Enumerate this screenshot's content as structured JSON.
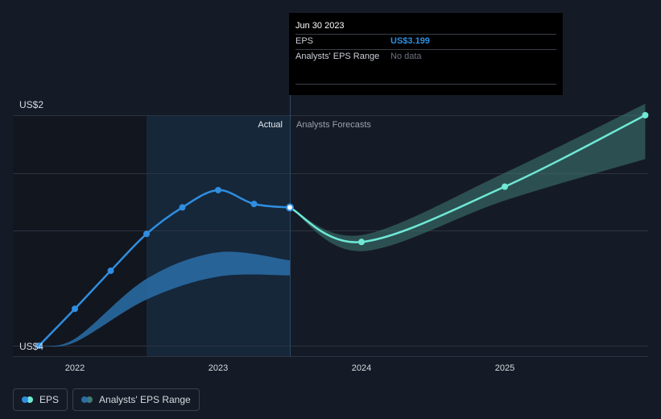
{
  "chart_data": {
    "type": "line",
    "title": "",
    "xlabel": "",
    "ylabel": "",
    "x_ticks": [
      "2022",
      "2023",
      "2024",
      "2025"
    ],
    "y_ticks": [
      "US$2",
      "US$4"
    ],
    "ylim": [
      2,
      4
    ],
    "grid": true,
    "regions": {
      "actual_label": "Actual",
      "forecast_label": "Analysts Forecasts"
    },
    "series": [
      {
        "name": "EPS",
        "color": "#2f8ee0",
        "points": [
          {
            "x": 2021.75,
            "y": 2.0
          },
          {
            "x": 2022.0,
            "y": 2.32
          },
          {
            "x": 2022.25,
            "y": 2.65
          },
          {
            "x": 2022.5,
            "y": 2.97
          },
          {
            "x": 2022.75,
            "y": 3.2
          },
          {
            "x": 2023.0,
            "y": 3.35
          },
          {
            "x": 2023.25,
            "y": 3.23
          },
          {
            "x": 2023.5,
            "y": 3.199
          }
        ]
      },
      {
        "name": "EPS",
        "color": "#6fe8d6",
        "points": [
          {
            "x": 2023.5,
            "y": 3.199
          },
          {
            "x": 2024.0,
            "y": 2.9
          },
          {
            "x": 2025.0,
            "y": 3.38
          },
          {
            "x": 2025.98,
            "y": 4.0
          }
        ]
      },
      {
        "name": "Analysts' EPS Range",
        "color": "#2a6ea8",
        "band": [
          {
            "x": 2021.75,
            "low": 2.0,
            "high": 2.0
          },
          {
            "x": 2022.0,
            "low": 2.03,
            "high": 2.06
          },
          {
            "x": 2022.5,
            "low": 2.4,
            "high": 2.58
          },
          {
            "x": 2023.0,
            "low": 2.6,
            "high": 2.81
          },
          {
            "x": 2023.5,
            "low": 2.61,
            "high": 2.74
          }
        ]
      },
      {
        "name": "Analysts' EPS Range",
        "color": "#3f7b74",
        "band": [
          {
            "x": 2023.5,
            "low": 3.199,
            "high": 3.199
          },
          {
            "x": 2024.0,
            "low": 2.82,
            "high": 2.96
          },
          {
            "x": 2025.0,
            "low": 3.26,
            "high": 3.5
          },
          {
            "x": 2025.98,
            "low": 3.62,
            "high": 4.1
          }
        ]
      }
    ],
    "highlight": {
      "x": 2023.5,
      "y": 3.199
    }
  },
  "tooltip": {
    "date": "Jun 30 2023",
    "eps_label": "EPS",
    "eps_value": "US$3.199",
    "range_label": "Analysts' EPS Range",
    "range_value": "No data"
  },
  "legend": {
    "eps": "EPS",
    "range": "Analysts' EPS Range",
    "eps_color": "#2f8ee0",
    "eps_forecast_color": "#6fe8d6",
    "range_color": "#2a6ea8",
    "range_forecast_color": "#3f7b74"
  }
}
